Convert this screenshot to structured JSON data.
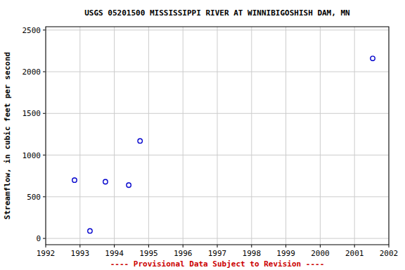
{
  "chart_data": {
    "type": "scatter",
    "title": "USGS 05201500 MISSISSIPPI RIVER AT WINNIBIGOSHISH DAM, MN",
    "y_label": "Streamflow, in cubic feet per second",
    "annotations": [
      "---- Provisional Data Subject to Revision ----"
    ],
    "x": [
      1992.84,
      1993.29,
      1993.74,
      1994.42,
      1994.75,
      2001.53
    ],
    "values": [
      700,
      90,
      680,
      640,
      1170,
      2160
    ],
    "color": "#0000cc",
    "marker": "circle-open",
    "xlim": [
      1992,
      2002
    ],
    "xticks": [
      1992,
      1993,
      1994,
      1995,
      1996,
      1997,
      1998,
      1999,
      2000,
      2001,
      2002
    ],
    "ylim": [
      -75,
      2540
    ],
    "yticks": [
      0,
      500,
      1000,
      1500,
      2000,
      2500
    ],
    "grid": true
  }
}
